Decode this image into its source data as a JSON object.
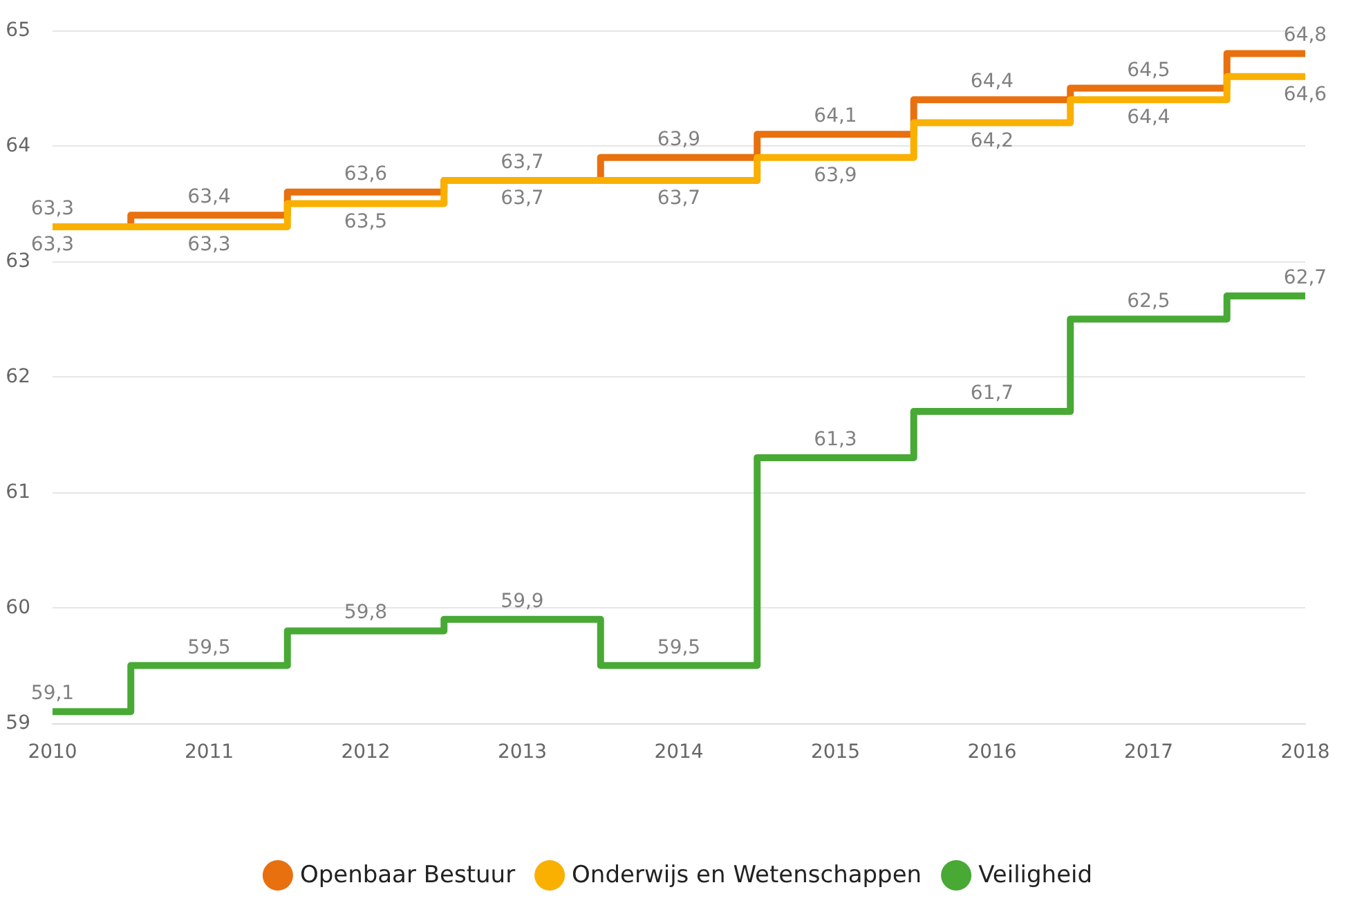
{
  "chart_data": {
    "type": "step",
    "categories": [
      "2010",
      "2011",
      "2012",
      "2013",
      "2014",
      "2015",
      "2016",
      "2017",
      "2018"
    ],
    "series": [
      {
        "name": "Openbaar Bestuur",
        "color": "#e8700f",
        "values": [
          63.3,
          63.4,
          63.6,
          63.7,
          63.9,
          64.1,
          64.4,
          64.5,
          64.8
        ],
        "value_labels": [
          "63,3",
          "63,4",
          "63,6",
          "63,7",
          "63,9",
          "64,1",
          "64,4",
          "64,5",
          "64,8"
        ]
      },
      {
        "name": "Onderwijs en Wetenschappen",
        "color": "#f9b000",
        "values": [
          63.3,
          63.3,
          63.5,
          63.7,
          63.7,
          63.9,
          64.2,
          64.4,
          64.6
        ],
        "value_labels": [
          "63,3",
          "63,3",
          "63,5",
          "63,7",
          "63,7",
          "63,9",
          "64,2",
          "64,4",
          "64,6"
        ]
      },
      {
        "name": "Veiligheid",
        "color": "#48a935",
        "values": [
          59.1,
          59.5,
          59.8,
          59.9,
          59.5,
          61.3,
          61.7,
          62.5,
          62.7
        ],
        "value_labels": [
          "59,1",
          "59,5",
          "59,8",
          "59,9",
          "59,5",
          "61,3",
          "61,7",
          "62,5",
          "62,7"
        ]
      }
    ],
    "ylim": [
      59,
      65
    ],
    "yticks": [
      59,
      60,
      61,
      62,
      63,
      64,
      65
    ],
    "grid": "y",
    "legend": "bottom",
    "marker": "none"
  }
}
